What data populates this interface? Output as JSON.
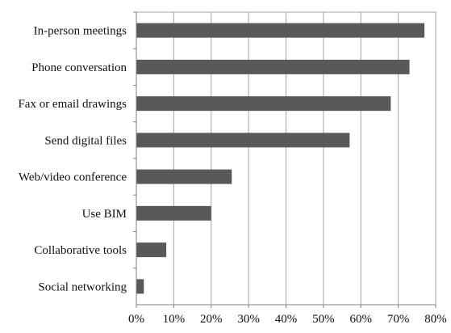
{
  "chart_data": {
    "type": "bar",
    "orientation": "horizontal",
    "title": "",
    "xlabel": "",
    "ylabel": "",
    "categories": [
      "In-person meetings",
      "Phone conversation",
      "Fax or email drawings",
      "Send digital files",
      "Web/video conference",
      "Use BIM",
      "Collaborative tools",
      "Social networking"
    ],
    "values": [
      77,
      73,
      68,
      57,
      25.5,
      20,
      8,
      2
    ],
    "xlim": [
      0,
      80
    ],
    "x_ticks": [
      "0%",
      "10%",
      "20%",
      "30%",
      "40%",
      "50%",
      "60%",
      "70%",
      "80%"
    ],
    "grid": "vertical",
    "legend": "none",
    "bar_color": "#595959",
    "grid_color": "#a6a6a6",
    "axis_color": "#808080"
  }
}
